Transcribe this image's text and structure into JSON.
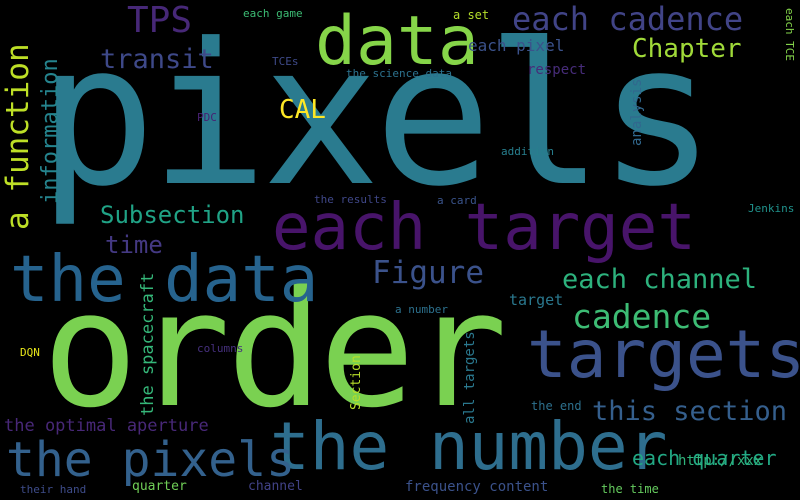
{
  "words": [
    {
      "id": "pixels",
      "text": "pixels",
      "color": "#2a7b8f"
    },
    {
      "id": "order",
      "text": "order",
      "color": "#7ad151"
    },
    {
      "id": "data",
      "text": "data",
      "color": "#86d549"
    },
    {
      "id": "each-target",
      "text": "each target",
      "color": "#48146a"
    },
    {
      "id": "the-data",
      "text": "the data",
      "color": "#26638e"
    },
    {
      "id": "the-number",
      "text": "the number",
      "color": "#2e6e8e"
    },
    {
      "id": "targets",
      "text": "targets",
      "color": "#3b528b"
    },
    {
      "id": "the-pixels",
      "text": "the pixels",
      "color": "#33618d"
    },
    {
      "id": "tps",
      "text": "TPS",
      "color": "#472878"
    },
    {
      "id": "each-cadence",
      "text": "each cadence",
      "color": "#414487"
    },
    {
      "id": "chapter",
      "text": "Chapter",
      "color": "#a0da39"
    },
    {
      "id": "transit",
      "text": "transit",
      "color": "#3e4989"
    },
    {
      "id": "a-function",
      "text": "a function",
      "color": "#bddf26"
    },
    {
      "id": "information",
      "text": "information",
      "color": "#25848e"
    },
    {
      "id": "cal",
      "text": "CAL",
      "color": "#fde725"
    },
    {
      "id": "figure",
      "text": "Figure",
      "color": "#3b528b"
    },
    {
      "id": "each-channel",
      "text": "each channel",
      "color": "#2db27d"
    },
    {
      "id": "cadence",
      "text": "cadence",
      "color": "#3dbc74"
    },
    {
      "id": "subsection",
      "text": "Subsection",
      "color": "#20a386"
    },
    {
      "id": "time",
      "text": "time",
      "color": "#443983"
    },
    {
      "id": "this-section",
      "text": "this section",
      "color": "#355f8d"
    },
    {
      "id": "the-optimal-aperture",
      "text": "the optimal aperture",
      "color": "#482878"
    },
    {
      "id": "the-spacecraft",
      "text": "the spacecraft",
      "color": "#35b779"
    },
    {
      "id": "each-pixel",
      "text": "each pixel",
      "color": "#3b528b"
    },
    {
      "id": "each-quarter",
      "text": "each quarter",
      "color": "#22a884"
    },
    {
      "id": "http-xxx",
      "text": "http://xxx",
      "color": "#2fb47c"
    },
    {
      "id": "target",
      "text": "target",
      "color": "#2a788e"
    },
    {
      "id": "respect",
      "text": "respect",
      "color": "#472c7a"
    },
    {
      "id": "frequency-content",
      "text": "frequency content",
      "color": "#3b528b"
    },
    {
      "id": "all-targets",
      "text": "all targets",
      "color": "#2a788e"
    },
    {
      "id": "section",
      "text": "Section",
      "color": "#b8de29"
    },
    {
      "id": "analysis",
      "text": "analysis",
      "color": "#31688e"
    },
    {
      "id": "each-game",
      "text": "each game",
      "color": "#3cbc74"
    },
    {
      "id": "a-set",
      "text": "a set",
      "color": "#b5de2b"
    },
    {
      "id": "each-tce",
      "text": "each TCE",
      "color": "#84d44b"
    },
    {
      "id": "tces",
      "text": "TCEs",
      "color": "#3e4a89"
    },
    {
      "id": "the-science-data",
      "text": "the science data",
      "color": "#2c728e"
    },
    {
      "id": "pdc",
      "text": "PDC",
      "color": "#482173"
    },
    {
      "id": "addition",
      "text": "addition",
      "color": "#277f8e"
    },
    {
      "id": "the-results",
      "text": "the results",
      "color": "#3f4788"
    },
    {
      "id": "a-card",
      "text": "a card",
      "color": "#3a548c"
    },
    {
      "id": "jenkins",
      "text": "Jenkins",
      "color": "#20928c"
    },
    {
      "id": "a-number",
      "text": "a number",
      "color": "#2c718e"
    },
    {
      "id": "dqn",
      "text": "DQN",
      "color": "#e5e419"
    },
    {
      "id": "columns",
      "text": "columns",
      "color": "#46307e"
    },
    {
      "id": "the-end",
      "text": "the end",
      "color": "#2d718e"
    },
    {
      "id": "their-hand",
      "text": "their hand",
      "color": "#3e4c8a"
    },
    {
      "id": "quarter",
      "text": "quarter",
      "color": "#70cf57"
    },
    {
      "id": "channel",
      "text": "channel",
      "color": "#414287"
    },
    {
      "id": "the-time",
      "text": "the time",
      "color": "#65cb5e"
    }
  ]
}
